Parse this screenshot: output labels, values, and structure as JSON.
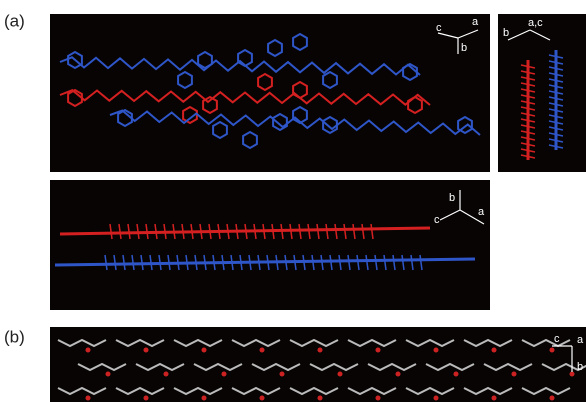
{
  "panel_labels": [
    "(a)",
    "(b)"
  ],
  "axes": [
    {
      "labels": [
        "c",
        "a",
        "b"
      ]
    },
    {
      "labels": [
        "b",
        "a,c"
      ]
    },
    {
      "labels": [
        "b",
        "c",
        "a"
      ]
    },
    {
      "labels": [
        "c",
        "a",
        "b"
      ]
    }
  ]
}
